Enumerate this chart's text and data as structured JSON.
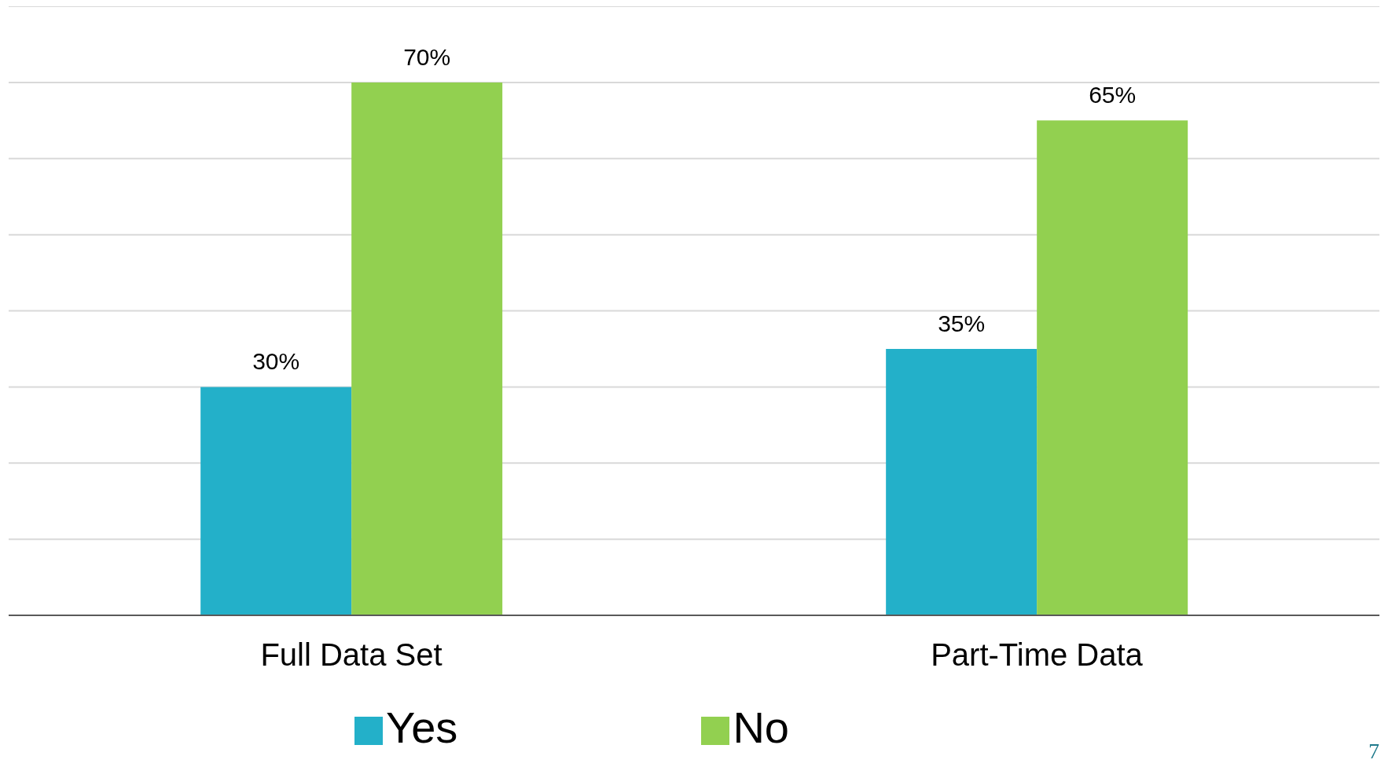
{
  "chart_data": {
    "type": "bar",
    "categories": [
      "Full Data Set",
      "Part-Time Data"
    ],
    "series": [
      {
        "name": "Yes",
        "color": "#23b0c9",
        "values": [
          30,
          35
        ],
        "value_labels": [
          "30%",
          "35%"
        ]
      },
      {
        "name": "No",
        "color": "#92d050",
        "values": [
          70,
          65
        ],
        "value_labels": [
          "70%",
          "65%"
        ]
      }
    ],
    "ylim": [
      0,
      80
    ],
    "yticks": [
      {
        "value": 0,
        "label": null
      },
      {
        "value": 10,
        "label": null
      },
      {
        "value": 20,
        "label": null
      },
      {
        "value": 30,
        "label": null
      },
      {
        "value": 40,
        "label": null
      },
      {
        "value": 50,
        "label": null
      },
      {
        "value": 60,
        "label": null
      },
      {
        "value": 70,
        "label": null
      },
      {
        "value": 80,
        "label": null
      }
    ],
    "tick_labels": "x",
    "grid": "y",
    "legend": "bottom",
    "annotations": [
      "7"
    ]
  }
}
